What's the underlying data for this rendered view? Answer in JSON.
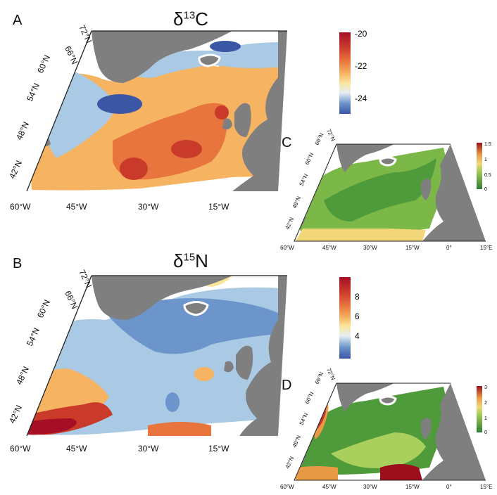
{
  "panels": {
    "A": {
      "label": "A",
      "title_main": "δ",
      "title_sup": "13",
      "title_elem": "C",
      "lat_ticks": [
        "72°N",
        "66°N",
        "60°N",
        "54°N",
        "48°N",
        "42°N"
      ],
      "lon_ticks": [
        "60°W",
        "45°W",
        "30°W",
        "15°W"
      ],
      "colorbar": {
        "ticks": [
          "-20",
          "-22",
          "-24"
        ],
        "range": [
          -25,
          -20
        ]
      }
    },
    "B": {
      "label": "B",
      "title_main": "δ",
      "title_sup": "15",
      "title_elem": "N",
      "lat_ticks": [
        "72°N",
        "66°N",
        "60°N",
        "54°N",
        "48°N",
        "42°N"
      ],
      "lon_ticks": [
        "60°W",
        "45°W",
        "30°W",
        "15°W"
      ],
      "colorbar": {
        "ticks": [
          "8",
          "6",
          "4"
        ],
        "range": [
          2,
          10
        ]
      }
    },
    "C": {
      "label": "C",
      "lat_ticks": [
        "72°N",
        "66°N",
        "60°N",
        "54°N",
        "48°N",
        "42°N"
      ],
      "lon_ticks": [
        "60°W",
        "45°W",
        "30°W",
        "15°W",
        "0°",
        "15°E"
      ],
      "colorbar": {
        "ticks": [
          "1.5",
          "1",
          "0.5",
          "0"
        ],
        "range": [
          0,
          1.5
        ]
      }
    },
    "D": {
      "label": "D",
      "lat_ticks": [
        "72°N",
        "66°N",
        "60°N",
        "54°N",
        "48°N",
        "42°N"
      ],
      "lon_ticks": [
        "60°W",
        "45°W",
        "30°W",
        "15°W",
        "0°",
        "15°E"
      ],
      "colorbar": {
        "ticks": [
          "3",
          "2",
          "1",
          "0"
        ],
        "range": [
          0,
          3
        ]
      }
    }
  },
  "colors": {
    "land": "#7f7f7f",
    "ocean_empty": "#ffffff",
    "diverging": [
      "#3a56a5",
      "#6c95cb",
      "#a9c9e4",
      "#e4eef3",
      "#fbe59a",
      "#f6b361",
      "#e8743e",
      "#c93a2a",
      "#a50f26"
    ],
    "green": [
      "#2e7d32",
      "#4f9a3a",
      "#7bb848",
      "#a9cf5c",
      "#d5e38a",
      "#f2d77a",
      "#e89a45",
      "#c8382a",
      "#9b0f1d"
    ]
  }
}
